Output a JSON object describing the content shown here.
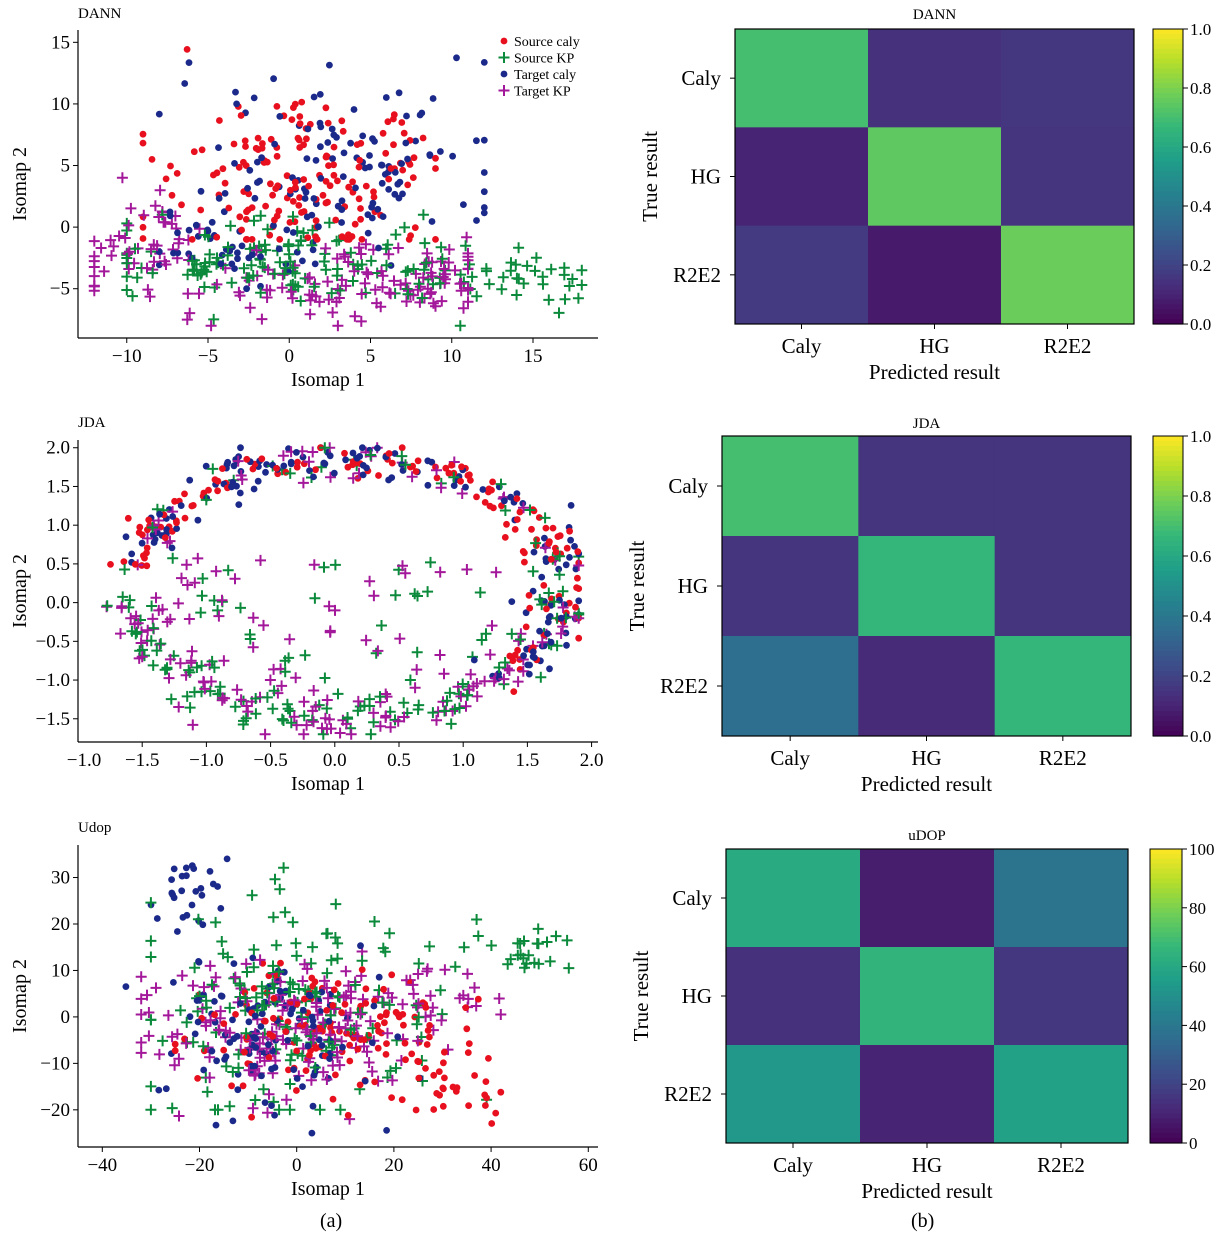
{
  "figure": {
    "caption_a": "(a)",
    "caption_b": "(b)"
  },
  "legend": {
    "entries": [
      {
        "label": "Source caly",
        "color": "#e8101e",
        "marker": "circle"
      },
      {
        "label": "Source KP",
        "color": "#0c8a3c",
        "marker": "plus"
      },
      {
        "label": "Target caly",
        "color": "#1b2a8a",
        "marker": "circle"
      },
      {
        "label": "Target KP",
        "color": "#a3189a",
        "marker": "plus"
      }
    ]
  },
  "colors": {
    "source_caly": "#e8101e",
    "source_kp": "#0c8a3c",
    "target_caly": "#1b2a8a",
    "target_kp": "#a3189a"
  },
  "chart_data": [
    {
      "type": "scatter",
      "title": "DANN",
      "xlabel": "Isomap 1",
      "ylabel": "Isomap 2",
      "xlim": [
        -13,
        19
      ],
      "ylim": [
        -9,
        16
      ],
      "xticks": [
        -10,
        -5,
        0,
        5,
        10,
        15
      ],
      "xtick_labels": [
        "−10",
        "−5",
        "0",
        "5",
        "10",
        "15"
      ],
      "yticks": [
        -5,
        0,
        5,
        10,
        15
      ],
      "ytick_labels": [
        "−5",
        "0",
        "5",
        "10",
        "15"
      ],
      "legend": "top-right",
      "series": [
        {
          "name": "Source caly",
          "n": 170,
          "clusters": [
            {
              "cx": 1,
              "cy": 4,
              "sx": 4.5,
              "sy": 3.5,
              "w": 1
            }
          ],
          "x_range": [
            -9,
            9
          ],
          "y_range": [
            -1,
            15
          ]
        },
        {
          "name": "Source KP",
          "n": 170,
          "clusters": [
            {
              "cx": 0,
              "cy": -3,
              "sx": 6,
              "sy": 1.6,
              "w": 0.8
            },
            {
              "cx": 14,
              "cy": -4.5,
              "sx": 2.5,
              "sy": 1,
              "w": 0.2
            }
          ],
          "x_range": [
            -10,
            18
          ],
          "y_range": [
            -8,
            1
          ]
        },
        {
          "name": "Target caly",
          "n": 160,
          "clusters": [
            {
              "cx": 3,
              "cy": 5,
              "sx": 5,
              "sy": 4,
              "w": 0.75
            },
            {
              "cx": -3,
              "cy": -2,
              "sx": 3,
              "sy": 1.5,
              "w": 0.25
            }
          ],
          "x_range": [
            -8,
            12
          ],
          "y_range": [
            -5,
            15
          ]
        },
        {
          "name": "Target KP",
          "n": 170,
          "clusters": [
            {
              "cx": -9,
              "cy": -1.5,
              "sx": 2,
              "sy": 2,
              "w": 0.3
            },
            {
              "cx": 0,
              "cy": -5,
              "sx": 3,
              "sy": 1.5,
              "w": 0.35
            },
            {
              "cx": 8,
              "cy": -4.5,
              "sx": 2.5,
              "sy": 1.5,
              "w": 0.35
            }
          ],
          "x_range": [
            -12,
            11
          ],
          "y_range": [
            -8,
            4
          ]
        }
      ]
    },
    {
      "type": "scatter",
      "title": "JDA",
      "xlabel": "Isomap 1",
      "ylabel": "Isomap 2",
      "xlim": [
        -2.0,
        2.05
      ],
      "ylim": [
        -1.8,
        2.1
      ],
      "xticks": [
        -1.5,
        -1.0,
        -0.5,
        0.0,
        0.5,
        1.0,
        1.5,
        2.0
      ],
      "xtick_labels": [
        "−1.5",
        "−1.0",
        "−0.5",
        "0.0",
        "0.5",
        "1.0",
        "1.5",
        "2.0"
      ],
      "extra_xtick_label": "−1.0",
      "yticks": [
        -1.5,
        -1.0,
        -0.5,
        0.0,
        0.5,
        1.0,
        1.5,
        2.0
      ],
      "ytick_labels": [
        "−1.5",
        "−1.0",
        "−0.5",
        "0.0",
        "0.5",
        "1.0",
        "1.5",
        "2.0"
      ],
      "series": [
        {
          "name": "Source caly",
          "n": 150,
          "shape": "ring-top"
        },
        {
          "name": "Source KP",
          "n": 170,
          "shape": "ring-bottom"
        },
        {
          "name": "Target caly",
          "n": 150,
          "shape": "ring-top"
        },
        {
          "name": "Target KP",
          "n": 190,
          "shape": "ring-bottom"
        }
      ]
    },
    {
      "type": "scatter",
      "title": "Udop",
      "xlabel": "Isomap 1",
      "ylabel": "Isomap 2",
      "xlim": [
        -45,
        62
      ],
      "ylim": [
        -28,
        37
      ],
      "xticks": [
        -40,
        -20,
        0,
        20,
        40,
        60
      ],
      "xtick_labels": [
        "−40",
        "−20",
        "0",
        "20",
        "40",
        "60"
      ],
      "yticks": [
        -20,
        -10,
        0,
        10,
        20,
        30
      ],
      "ytick_labels": [
        "−20",
        "−10",
        "0",
        "10",
        "20",
        "30"
      ],
      "series": [
        {
          "name": "Source caly",
          "n": 170,
          "clusters": [
            {
              "cx": 5,
              "cy": -3,
              "sx": 14,
              "sy": 7,
              "w": 0.8
            },
            {
              "cx": 30,
              "cy": -15,
              "sx": 6,
              "sy": 5,
              "w": 0.2
            }
          ],
          "x_range": [
            -25,
            42
          ],
          "y_range": [
            -26,
            15
          ]
        },
        {
          "name": "Source KP",
          "n": 190,
          "clusters": [
            {
              "cx": 0,
              "cy": 3,
              "sx": 15,
              "sy": 10,
              "w": 0.85
            },
            {
              "cx": 45,
              "cy": 14,
              "sx": 6,
              "sy": 3,
              "w": 0.15
            }
          ],
          "x_range": [
            -30,
            56
          ],
          "y_range": [
            -20,
            34
          ]
        },
        {
          "name": "Target caly",
          "n": 150,
          "clusters": [
            {
              "cx": -5,
              "cy": -3,
              "sx": 12,
              "sy": 9,
              "w": 0.85
            },
            {
              "cx": -22,
              "cy": 27,
              "sx": 4,
              "sy": 4,
              "w": 0.15
            }
          ],
          "x_range": [
            -42,
            30
          ],
          "y_range": [
            -25,
            34
          ]
        },
        {
          "name": "Target KP",
          "n": 190,
          "clusters": [
            {
              "cx": -3,
              "cy": -2,
              "sx": 15,
              "sy": 7,
              "w": 0.85
            },
            {
              "cx": 30,
              "cy": 5,
              "sx": 6,
              "sy": 3,
              "w": 0.15
            }
          ],
          "x_range": [
            -32,
            42
          ],
          "y_range": [
            -22,
            22
          ]
        }
      ]
    },
    {
      "type": "heatmap",
      "title": "DANN",
      "xlabel": "Predicted result",
      "ylabel": "True result",
      "categories": [
        "Caly",
        "HG",
        "R2E2"
      ],
      "matrix": [
        [
          0.7,
          0.14,
          0.16
        ],
        [
          0.1,
          0.75,
          0.15
        ],
        [
          0.17,
          0.07,
          0.77
        ]
      ],
      "vmin": 0.0,
      "vmax": 1.0,
      "colorbar_ticks": [
        0.0,
        0.2,
        0.4,
        0.6,
        0.8,
        1.0
      ],
      "colorbar_labels": [
        "0.0",
        "0.2",
        "0.4",
        "0.6",
        "0.8",
        "1.0"
      ]
    },
    {
      "type": "heatmap",
      "title": "JDA",
      "xlabel": "Predicted result",
      "ylabel": "True result",
      "categories": [
        "Caly",
        "HG",
        "R2E2"
      ],
      "matrix": [
        [
          0.7,
          0.15,
          0.15
        ],
        [
          0.15,
          0.66,
          0.15
        ],
        [
          0.36,
          0.12,
          0.66
        ]
      ],
      "vmin": 0.0,
      "vmax": 1.0,
      "colorbar_ticks": [
        0.0,
        0.2,
        0.4,
        0.6,
        0.8,
        1.0
      ],
      "colorbar_labels": [
        "0.0",
        "0.2",
        "0.4",
        "0.6",
        "0.8",
        "1.0"
      ]
    },
    {
      "type": "heatmap",
      "title": "uDOP",
      "xlabel": "Predicted result",
      "ylabel": "True result",
      "categories": [
        "Caly",
        "HG",
        "R2E2"
      ],
      "matrix": [
        [
          61,
          8,
          38
        ],
        [
          14,
          65,
          16
        ],
        [
          53,
          10,
          57
        ]
      ],
      "vmin": 0,
      "vmax": 100,
      "colorbar_ticks": [
        0,
        20,
        40,
        60,
        80,
        100
      ],
      "colorbar_labels": [
        "0",
        "20",
        "40",
        "60",
        "80",
        "100"
      ]
    }
  ]
}
